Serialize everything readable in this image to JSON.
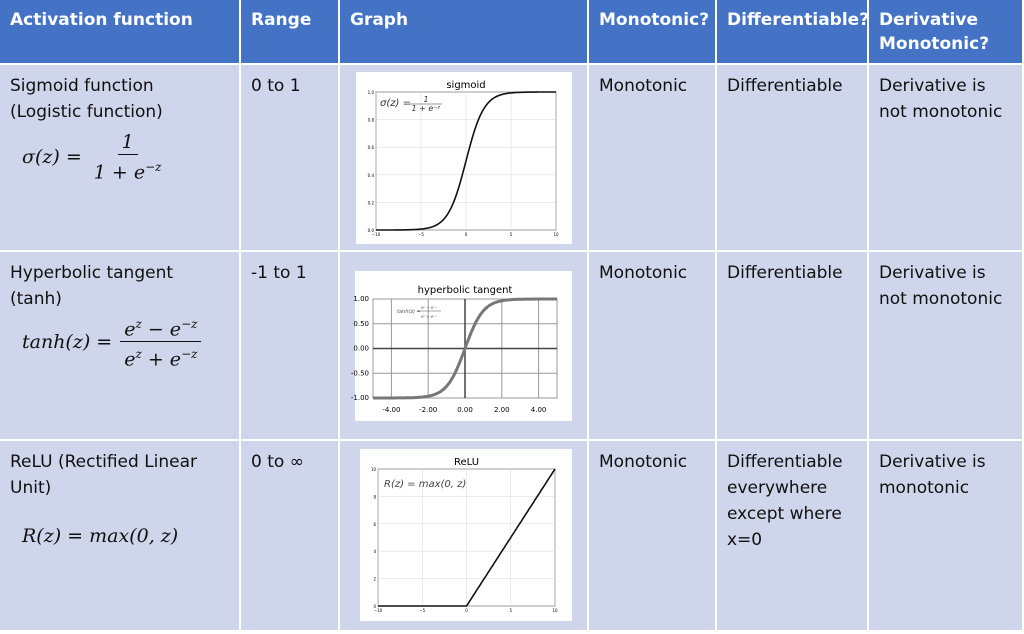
{
  "header": [
    "Activation function",
    "Range",
    "Graph",
    "Monotonic?",
    "Differentiable?",
    "Derivative Monotonic?"
  ],
  "rows": [
    {
      "name": "Sigmoid function (Logistic function)",
      "formula": {
        "lhs": "σ(z) =",
        "num": "1",
        "den": "1 + e",
        "den_exp": "−z"
      },
      "range": "0 to 1",
      "graph": {
        "title": "sigmoid",
        "formula_lhs": "σ(z) =",
        "formula_num": "1",
        "formula_den": "1 + e⁻ᶻ",
        "xticks": [
          "−10",
          "−5",
          "0",
          "5",
          "10"
        ],
        "yticks": [
          "0.0",
          "0.2",
          "0.4",
          "0.6",
          "0.8",
          "1.0"
        ]
      },
      "monotonic": "Monotonic",
      "differentiable": "Differentiable",
      "derivative": "Derivative is not monotonic"
    },
    {
      "name": "Hyperbolic tangent (tanh)",
      "formula": {
        "lhs": "tanh(z) =",
        "num": "e",
        "num_exp": "z",
        "num_mid": " − e",
        "num_exp2": "−z",
        "den": "e",
        "den_exp": "z",
        "den_mid": " + e",
        "den_exp2": "−z"
      },
      "range": "-1 to 1",
      "graph": {
        "title": "hyperbolic tangent",
        "formula_lhs": "tanh(z) =",
        "formula_num": "eᶻ − e⁻ᶻ",
        "formula_den": "eᶻ + e⁻ᶻ",
        "xticks": [
          "-4.00",
          "-2.00",
          "0.00",
          "2.00",
          "4.00"
        ],
        "yticks": [
          "-1.00",
          "-0.50",
          "0.00",
          "0.50",
          "1.00"
        ]
      },
      "monotonic": "Monotonic",
      "differentiable": "Differentiable",
      "derivative": "Derivative is not monotonic"
    },
    {
      "name": "ReLU (Rectified Linear Unit)",
      "formula": {
        "lhs": "R(z) = max(0, z)"
      },
      "range": "0 to ∞",
      "graph": {
        "title": "ReLU",
        "formula_lhs": "R(z) = max(0,  z)",
        "xticks": [
          "−10",
          "−5",
          "0",
          "5",
          "10"
        ],
        "yticks": [
          "0",
          "2",
          "4",
          "6",
          "8",
          "10"
        ]
      },
      "monotonic": "Monotonic",
      "differentiable": "Differentiable everywhere except where x=0",
      "derivative": "Derivative is monotonic"
    }
  ]
}
